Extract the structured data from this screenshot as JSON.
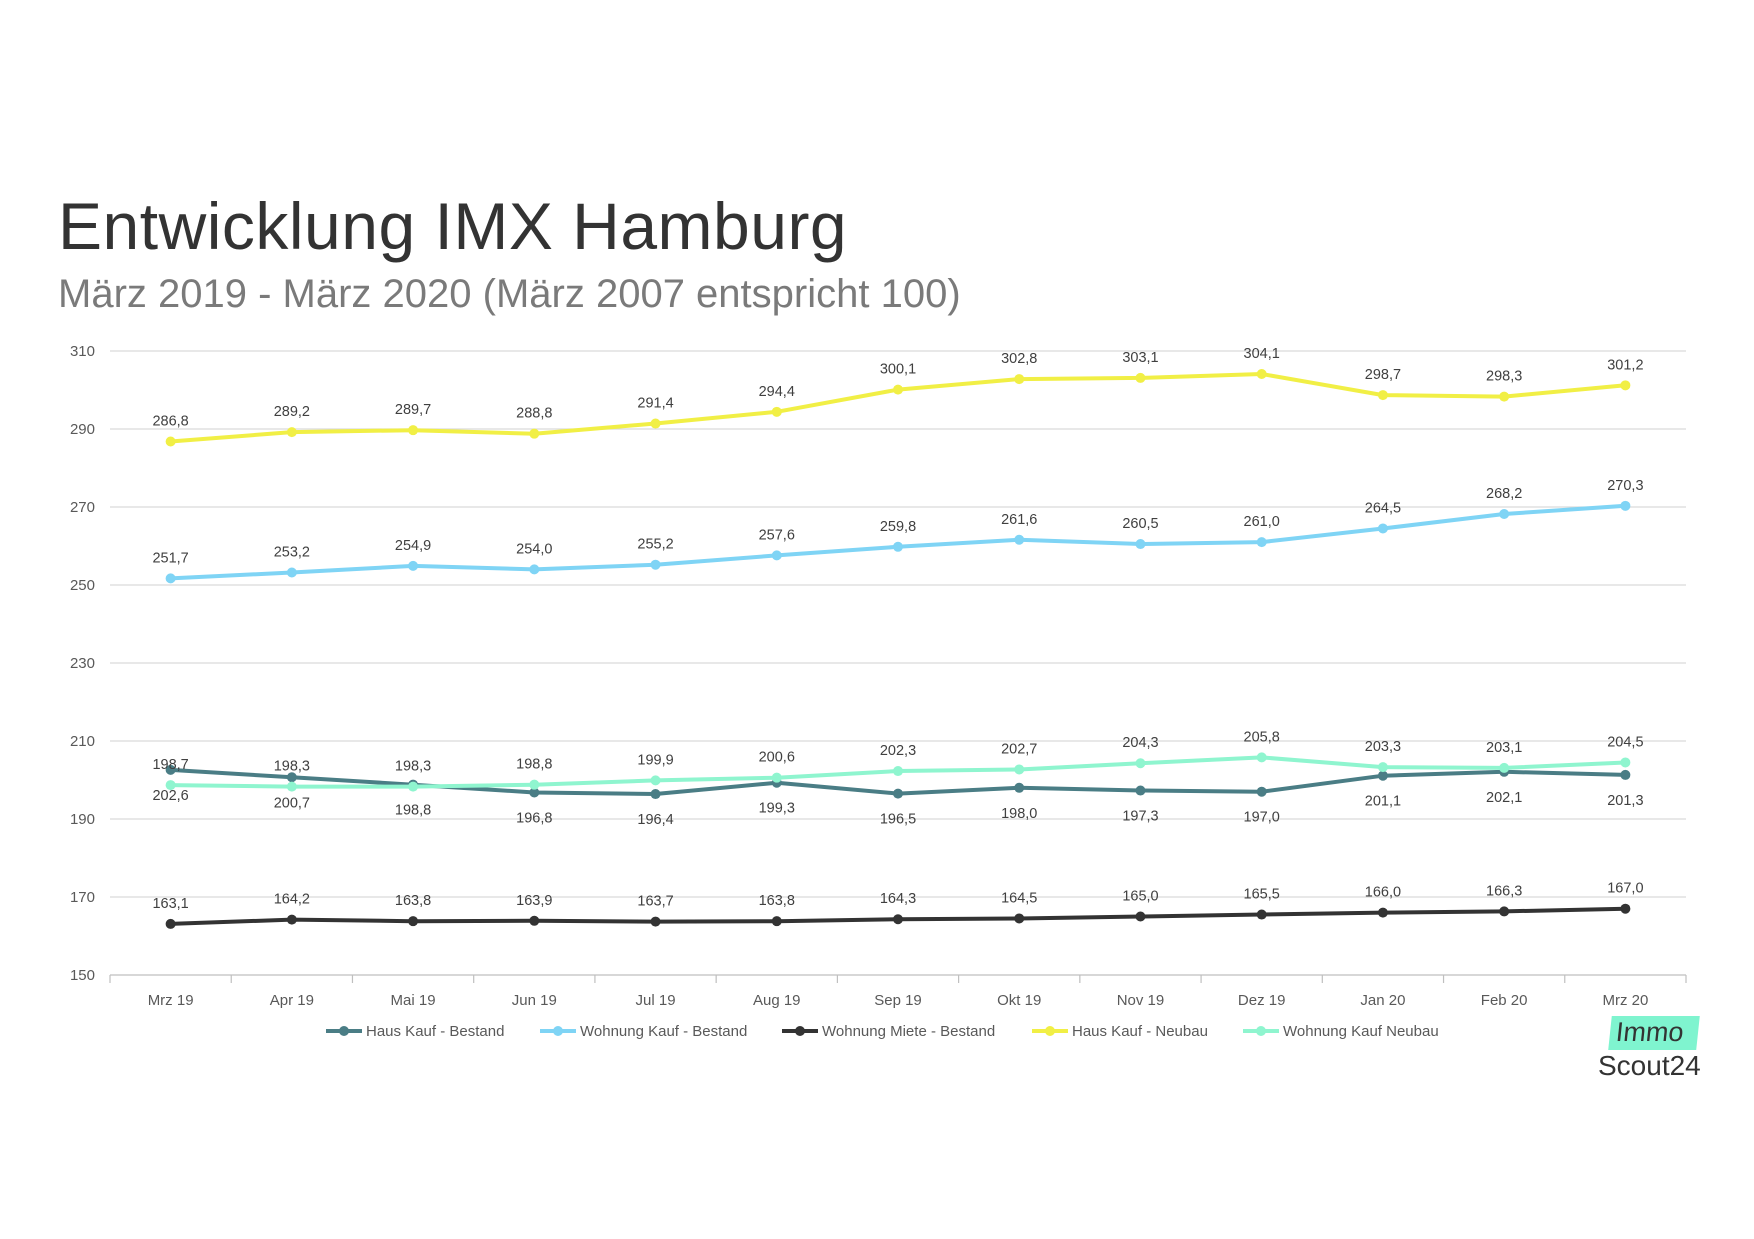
{
  "header": {
    "title": "Entwicklung IMX Hamburg",
    "subtitle": "März 2019 - März 2020 (März 2007 entspricht 100)"
  },
  "logo": {
    "line1": "Immo",
    "line2": "Scout24",
    "accent": "#7ff4cf"
  },
  "chart_data": {
    "type": "line",
    "title": "Entwicklung IMX Hamburg",
    "subtitle": "März 2019 - März 2020 (März 2007 entspricht 100)",
    "categories": [
      "Mrz 19",
      "Apr 19",
      "Mai 19",
      "Jun 19",
      "Jul 19",
      "Aug 19",
      "Sep 19",
      "Okt 19",
      "Nov 19",
      "Dez 19",
      "Jan 20",
      "Feb 20",
      "Mrz 20"
    ],
    "ylim": [
      150,
      310
    ],
    "yticks": [
      "150",
      "170",
      "190",
      "210",
      "230",
      "250",
      "270",
      "290",
      "310"
    ],
    "grid": true,
    "legend": "bottom",
    "series": [
      {
        "name": "Haus Kauf - Bestand",
        "color": "#4a7d85",
        "values": [
          202.6,
          200.7,
          198.8,
          196.8,
          196.4,
          199.3,
          196.5,
          198.0,
          197.3,
          197.0,
          201.1,
          202.1,
          201.3
        ],
        "labels": [
          "202,6",
          "200,7",
          "198,8",
          "196,8",
          "196,4",
          "199,3",
          "196,5",
          "198,0",
          "197,3",
          "197,0",
          "201,1",
          "202,1",
          "201,3"
        ],
        "label_pos": "below"
      },
      {
        "name": "Wohnung Kauf - Bestand",
        "color": "#7fd4f5",
        "values": [
          251.7,
          253.2,
          254.9,
          254.0,
          255.2,
          257.6,
          259.8,
          261.6,
          260.5,
          261.0,
          264.5,
          268.2,
          270.3
        ],
        "labels": [
          "251,7",
          "253,2",
          "254,9",
          "254,0",
          "255,2",
          "257,6",
          "259,8",
          "261,6",
          "260,5",
          "261,0",
          "264,5",
          "268,2",
          "270,3"
        ],
        "label_pos": "above"
      },
      {
        "name": "Wohnung Miete - Bestand",
        "color": "#333333",
        "values": [
          163.1,
          164.2,
          163.8,
          163.9,
          163.7,
          163.8,
          164.3,
          164.5,
          165.0,
          165.5,
          166.0,
          166.3,
          167.0
        ],
        "labels": [
          "163,1",
          "164,2",
          "163,8",
          "163,9",
          "163,7",
          "163,8",
          "164,3",
          "164,5",
          "165,0",
          "165,5",
          "166,0",
          "166,3",
          "167,0"
        ],
        "label_pos": "above"
      },
      {
        "name": "Haus Kauf - Neubau",
        "color": "#f1ef45",
        "values": [
          286.8,
          289.2,
          289.7,
          288.8,
          291.4,
          294.4,
          300.1,
          302.8,
          303.1,
          304.1,
          298.7,
          298.3,
          301.2
        ],
        "labels": [
          "286,8",
          "289,2",
          "289,7",
          "288,8",
          "291,4",
          "294,4",
          "300,1",
          "302,8",
          "303,1",
          "304,1",
          "298,7",
          "298,3",
          "301,2"
        ],
        "label_pos": "above"
      },
      {
        "name": "Wohnung Kauf Neubau",
        "color": "#8ff5cf",
        "values": [
          198.7,
          198.3,
          198.3,
          198.8,
          199.9,
          200.6,
          202.3,
          202.7,
          204.3,
          205.8,
          203.3,
          203.1,
          204.5
        ],
        "labels": [
          "198,7",
          "198,3",
          "198,3",
          "198,8",
          "199,9",
          "200,6",
          "202,3",
          "202,7",
          "204,3",
          "205,8",
          "203,3",
          "203,1",
          "204,5"
        ],
        "label_pos": "above"
      }
    ]
  }
}
